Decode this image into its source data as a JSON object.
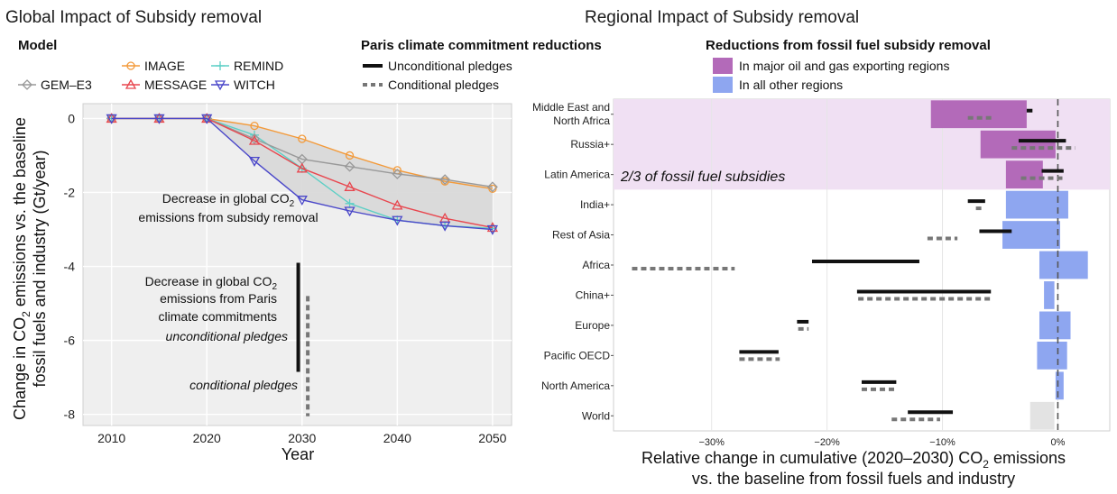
{
  "chart_data": [
    {
      "type": "line",
      "title": "Global Impact of Subsidy removal",
      "xlabel": "Year",
      "ylabel": "Change in CO2 emissions vs. the baseline fossil fuels and industry (Gt/year)",
      "ylabel_line1_pre": "Change in CO",
      "ylabel_line1_sub": "2",
      "ylabel_line1_post": " emissions vs. the baseline",
      "ylabel_line2": "fossil fuels and industry (Gt/year)",
      "xlim": [
        2007,
        2052
      ],
      "ylim": [
        -8.3,
        0.4
      ],
      "xticks": [
        2010,
        2020,
        2030,
        2040,
        2050
      ],
      "yticks": [
        0,
        -2,
        -4,
        -6,
        -8
      ],
      "grid": true,
      "legend_title": "Model",
      "x": [
        2010,
        2015,
        2020,
        2025,
        2030,
        2035,
        2040,
        2045,
        2050
      ],
      "series": [
        {
          "name": "IMAGE",
          "color": "#f39a3a",
          "marker": "circle",
          "values": [
            0,
            0,
            0,
            -0.2,
            -0.55,
            -1.0,
            -1.4,
            -1.7,
            -1.9
          ]
        },
        {
          "name": "REMIND",
          "color": "#5ccfc5",
          "marker": "plus",
          "values": [
            0,
            0,
            0,
            -0.45,
            -1.35,
            -2.3,
            -2.75,
            -2.9,
            -2.97
          ]
        },
        {
          "name": "GEM–E3",
          "color": "#999999",
          "marker": "diamond",
          "values": [
            0,
            0,
            0,
            -0.55,
            -1.1,
            -1.3,
            -1.5,
            -1.65,
            -1.85
          ]
        },
        {
          "name": "MESSAGE",
          "color": "#e8474f",
          "marker": "triangle-up",
          "values": [
            0,
            0,
            0,
            -0.6,
            -1.35,
            -1.85,
            -2.35,
            -2.7,
            -2.95
          ]
        },
        {
          "name": "WITCH",
          "color": "#4a47c9",
          "marker": "triangle-down",
          "values": [
            0,
            0,
            0,
            -1.15,
            -2.2,
            -2.5,
            -2.75,
            -2.9,
            -3.0
          ]
        }
      ],
      "band": {
        "x": [
          2020,
          2025,
          2030,
          2035,
          2040,
          2045,
          2050
        ],
        "upper": [
          0,
          -0.2,
          -0.55,
          -1.0,
          -1.4,
          -1.65,
          -1.85
        ],
        "lower": [
          0,
          -1.15,
          -2.2,
          -2.5,
          -2.75,
          -2.9,
          -3.0
        ]
      },
      "band_label_line1_pre": "Decrease in global CO",
      "band_label_sub": "2",
      "band_label_line2": "emissions from subsidy removal",
      "pledge_ranges": [
        {
          "name": "Unconditional pledges",
          "x": 2029.6,
          "low": -6.85,
          "high": -3.9,
          "style": "solid"
        },
        {
          "name": "Conditional pledges",
          "x": 2030.6,
          "low": -8.05,
          "high": -4.8,
          "style": "dashed"
        }
      ],
      "pledge_label_line1_pre": "Decrease in global CO",
      "pledge_label_sub": "2",
      "pledge_label_line2": "emissions from Paris",
      "pledge_label_line3": "climate commitments",
      "unconditional_label": "unconditional pledges",
      "conditional_label": "conditional pledges"
    },
    {
      "type": "bar",
      "orientation": "horizontal",
      "title": "Regional Impact of Subsidy removal",
      "xlabel_line1_pre": "Relative change in cumulative (2020–2030) CO",
      "xlabel_sub": "2",
      "xlabel_line1_post": " emissions",
      "xlabel_line2": "vs. the baseline from fossil fuels and industry",
      "xlim": [
        -38.5,
        4.5
      ],
      "xticks": [
        -30,
        -20,
        -10,
        0
      ],
      "xtick_labels": [
        "−30%",
        "−20%",
        "−10%",
        "0%"
      ],
      "legend_pledges_title": "Paris climate commitment reductions",
      "legend_pledges": [
        "Unconditional pledges",
        "Conditional pledges"
      ],
      "legend_regions_title": "Reductions from fossil fuel subsidy removal",
      "legend_regions": [
        {
          "label": "In major oil and gas exporting regions",
          "color": "#b36ab9"
        },
        {
          "label": "In all other regions",
          "color": "#8ea6f0"
        }
      ],
      "highlight_label": "2/3 of fossil fuel subsidies",
      "highlight_color": "#f0e0f3",
      "categories": [
        {
          "name": "Middle East and North Africa",
          "lines": [
            "Middle East and",
            "North Africa"
          ],
          "group": "oil",
          "bar": [
            -11.0,
            -2.7
          ],
          "uncond": [
            -2.7,
            -2.2
          ],
          "cond": [
            -7.8,
            -5.5
          ]
        },
        {
          "name": "Russia+",
          "lines": [
            "Russia+"
          ],
          "group": "oil",
          "bar": [
            -6.7,
            -0.2
          ],
          "uncond": [
            -3.4,
            0.7
          ],
          "cond": [
            -4.0,
            1.5
          ]
        },
        {
          "name": "Latin America",
          "lines": [
            "Latin America"
          ],
          "group": "oil",
          "bar": [
            -4.5,
            -1.3
          ],
          "uncond": [
            -1.4,
            0.5
          ],
          "cond": [
            -3.2,
            0.6
          ]
        },
        {
          "name": "India+",
          "lines": [
            "India+"
          ],
          "group": "other",
          "bar": [
            -4.5,
            0.9
          ],
          "uncond": [
            -7.8,
            -6.3
          ],
          "cond": [
            -7.1,
            -6.5
          ]
        },
        {
          "name": "Rest of Asia",
          "lines": [
            "Rest of Asia"
          ],
          "group": "other",
          "bar": [
            -4.8,
            0.2
          ],
          "uncond": [
            -6.8,
            -4.0
          ],
          "cond": [
            -11.3,
            -8.7
          ]
        },
        {
          "name": "Africa",
          "lines": [
            "Africa"
          ],
          "group": "other",
          "bar": [
            -1.6,
            2.6
          ],
          "uncond": [
            -21.3,
            -12.0
          ],
          "cond": [
            -36.9,
            -28.0
          ]
        },
        {
          "name": "China+",
          "lines": [
            "China+"
          ],
          "group": "other",
          "bar": [
            -1.2,
            -0.3
          ],
          "uncond": [
            -17.4,
            -5.8
          ],
          "cond": [
            -17.3,
            -5.7
          ]
        },
        {
          "name": "Europe",
          "lines": [
            "Europe"
          ],
          "group": "other",
          "bar": [
            -1.6,
            1.1
          ],
          "uncond": [
            -22.6,
            -21.6
          ],
          "cond": [
            -22.5,
            -21.6
          ]
        },
        {
          "name": "Pacific OECD",
          "lines": [
            "Pacific OECD"
          ],
          "group": "other",
          "bar": [
            -1.8,
            0.8
          ],
          "uncond": [
            -27.6,
            -24.2
          ],
          "cond": [
            -27.6,
            -24.1
          ]
        },
        {
          "name": "North America",
          "lines": [
            "North America"
          ],
          "group": "other",
          "bar": [
            -0.2,
            0.5
          ],
          "uncond": [
            -17.0,
            -14.0
          ],
          "cond": [
            -17.0,
            -14.0
          ]
        },
        {
          "name": "World",
          "lines": [
            "World"
          ],
          "group": "world",
          "bar": [
            -2.4,
            -0.3
          ],
          "uncond": [
            -13.0,
            -9.1
          ],
          "cond": [
            -14.4,
            -10.2
          ]
        }
      ],
      "world_bar_color": "#e3e3e3"
    }
  ]
}
